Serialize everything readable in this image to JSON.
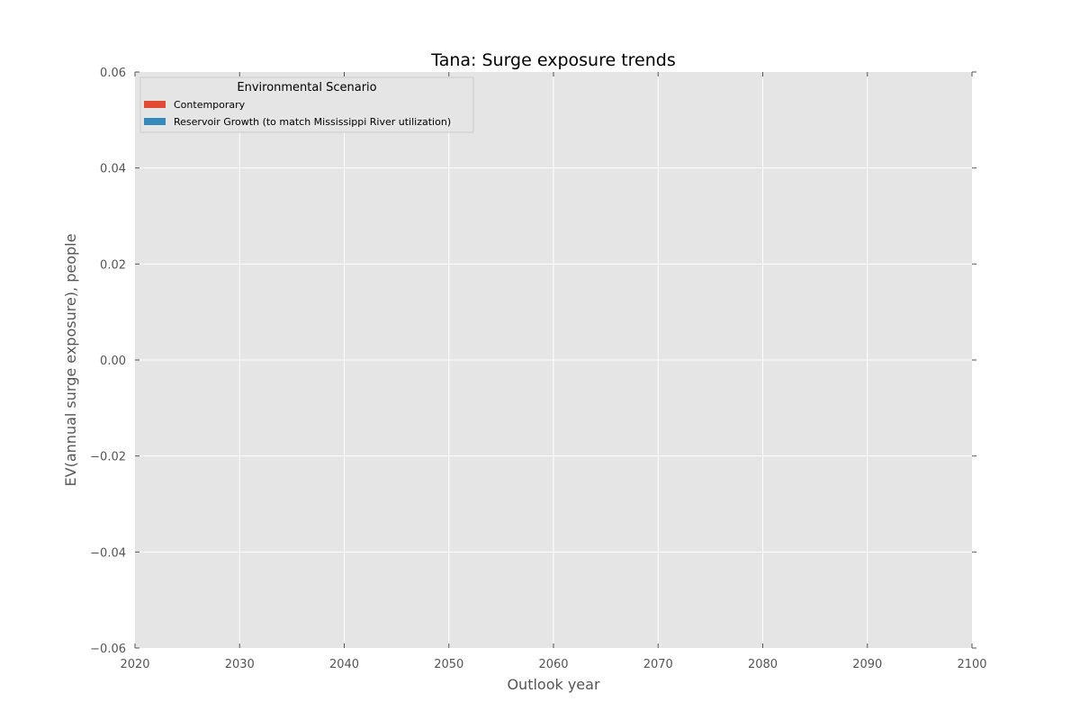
{
  "chart_data": {
    "type": "area",
    "title": "Tana: Surge exposure trends",
    "xlabel": "Outlook year",
    "ylabel": "EV(annual surge exposure), people",
    "xlim": [
      2020,
      2100
    ],
    "ylim": [
      -0.06,
      0.06
    ],
    "x_ticks": [
      "2020",
      "2030",
      "2040",
      "2050",
      "2060",
      "2070",
      "2080",
      "2090",
      "2100"
    ],
    "y_ticks": [
      "0.06",
      "0.04",
      "0.02",
      "0.00",
      "−0.02",
      "−0.04",
      "−0.06"
    ],
    "grid": true,
    "legend": {
      "title": "Environmental Scenario",
      "placement": "upper-left",
      "entries": [
        {
          "name": "Contemporary",
          "color": "#e24a33"
        },
        {
          "name": "Reservoir Growth (to match Mississippi River utilization)",
          "color": "#348abd"
        }
      ]
    },
    "series": [
      {
        "name": "Contemporary",
        "color": "#e24a33",
        "values": []
      },
      {
        "name": "Reservoir Growth (to match Mississippi River utilization)",
        "color": "#348abd",
        "values": []
      }
    ]
  },
  "colors": {
    "plot_background": "#e5e5e5",
    "grid": "#ffffff",
    "tick_text": "#555555"
  }
}
